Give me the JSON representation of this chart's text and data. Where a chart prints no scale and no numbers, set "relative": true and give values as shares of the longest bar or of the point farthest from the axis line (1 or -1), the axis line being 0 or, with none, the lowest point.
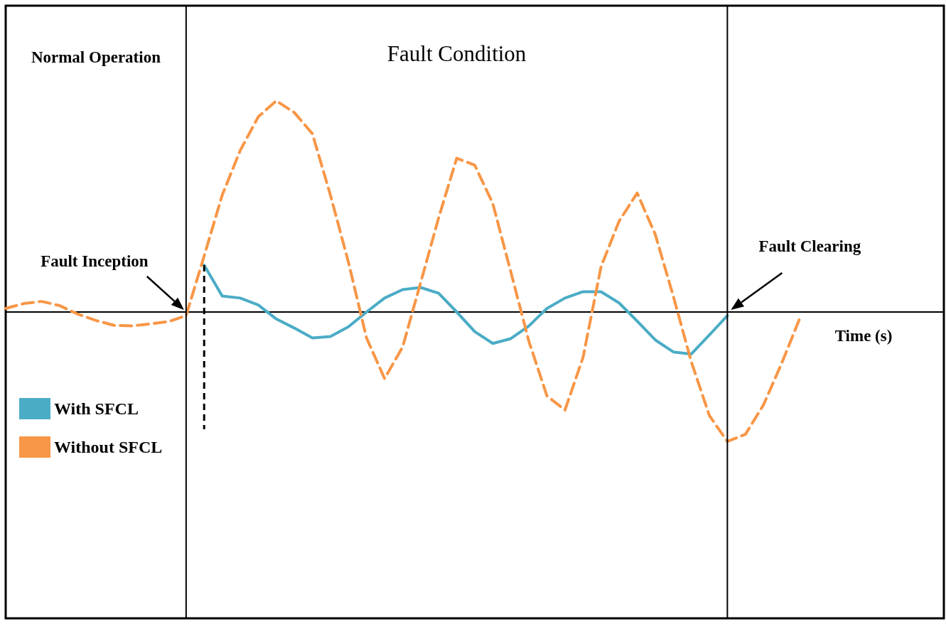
{
  "chart_data": {
    "type": "line",
    "relative": true,
    "xlabel": "Time (s)",
    "grid": false,
    "legend": "left",
    "marker": "none",
    "categories": [
      null,
      null,
      null,
      null,
      null,
      null,
      null,
      null,
      null,
      null,
      null,
      null,
      null,
      null,
      null,
      null,
      null,
      null,
      null,
      null,
      null,
      null,
      null,
      null,
      null,
      null,
      null,
      null,
      null,
      null,
      null,
      null,
      null,
      null,
      null,
      null,
      null,
      null,
      null,
      null,
      null,
      null,
      null,
      null,
      null,
      null,
      null,
      null,
      null,
      null,
      null,
      null,
      null
    ],
    "annotations": [
      "Normal Operation",
      "Fault Condition",
      "Fault Inception",
      "Fault Clearing"
    ],
    "series": [
      {
        "name": "With SFCL",
        "color": "#4bacc6",
        "line_style": "solid",
        "values": [
          null,
          null,
          null,
          null,
          null,
          null,
          null,
          null,
          null,
          null,
          null,
          0.222,
          0.076,
          0.066,
          0.033,
          -0.033,
          -0.076,
          -0.123,
          -0.116,
          -0.07,
          0,
          0.066,
          0.106,
          0.116,
          0.089,
          0,
          -0.093,
          -0.149,
          -0.126,
          -0.066,
          0.017,
          0.066,
          0.096,
          0.096,
          0.043,
          -0.043,
          -0.132,
          -0.189,
          -0.199,
          -0.109,
          -0.017,
          null,
          null,
          null,
          null,
          null,
          null,
          null,
          null,
          null,
          null,
          null,
          null
        ]
      },
      {
        "name": "Without SFCL",
        "color": "#f79646",
        "line_style": "dashed",
        "values": [
          0.017,
          0.04,
          0.05,
          0.03,
          -0.01,
          -0.04,
          -0.063,
          -0.066,
          -0.056,
          -0.046,
          -0.017,
          0.265,
          0.553,
          0.765,
          0.924,
          1,
          0.944,
          0.844,
          0.553,
          0.235,
          -0.123,
          -0.315,
          -0.166,
          0.139,
          0.447,
          0.728,
          0.695,
          0.513,
          0.189,
          -0.139,
          -0.397,
          -0.464,
          -0.215,
          0.215,
          0.43,
          0.563,
          0.368,
          0.076,
          -0.235,
          -0.49,
          -0.613,
          -0.579,
          -0.44,
          -0.245,
          -0.033,
          null,
          null,
          null,
          null,
          null,
          null,
          null,
          null
        ]
      }
    ]
  }
}
